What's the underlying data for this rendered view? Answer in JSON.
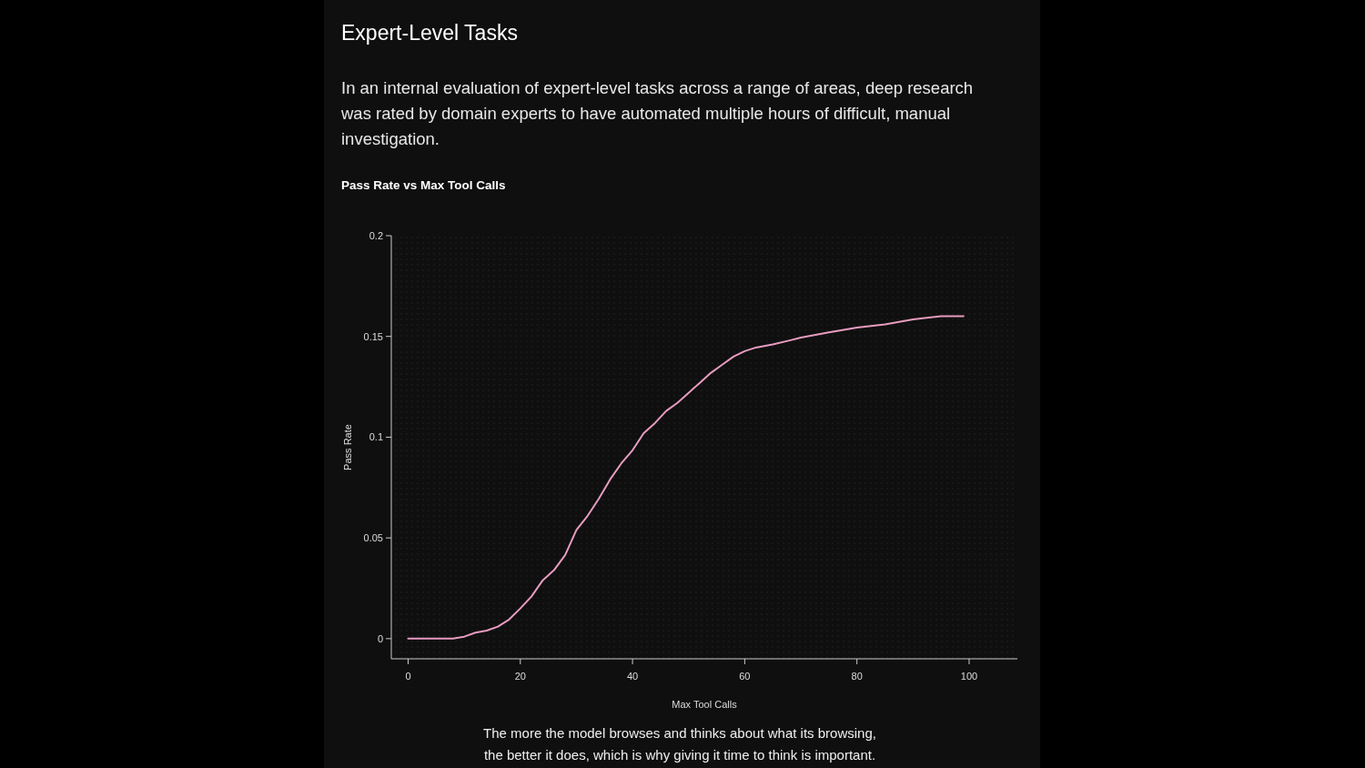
{
  "chart_data": {
    "type": "line",
    "title": "Expert-Level Tasks",
    "subtitle": "In an internal evaluation of expert-level tasks across a range of areas, deep research was rated by domain experts to have automated multiple hours of difficult, manual investigation.",
    "annotations": [
      "Pass Rate vs Max Tool Calls",
      "The more the model browses and thinks about what its browsing, the better it does, which is why giving it time to think is important."
    ],
    "xlabel": "Max Tool Calls",
    "ylabel": "Pass Rate",
    "xlim": [
      -3,
      108.6
    ],
    "ylim": [
      -0.01,
      0.2
    ],
    "xticks": [
      0,
      20,
      40,
      60,
      80,
      100
    ],
    "yticks": [
      0,
      0.05,
      0.1,
      0.15,
      0.2
    ],
    "grid": false,
    "line_style": "solid",
    "marker": "none",
    "series": [
      {
        "color": "#e89cc0",
        "x": [
          0,
          5,
          8,
          10,
          12,
          14,
          16,
          18,
          20,
          22,
          24,
          26,
          28,
          30,
          32,
          34,
          36,
          38,
          40,
          42,
          44,
          46,
          48,
          50,
          52,
          54,
          56,
          58,
          60,
          62,
          65,
          68,
          70,
          75,
          80,
          85,
          90,
          95,
          99
        ],
        "values": [
          0,
          0,
          0,
          0.001,
          0.003,
          0.004,
          0.006,
          0.0095,
          0.015,
          0.021,
          0.029,
          0.034,
          0.0415,
          0.054,
          0.061,
          0.0695,
          0.079,
          0.087,
          0.0935,
          0.102,
          0.107,
          0.113,
          0.117,
          0.122,
          0.127,
          0.132,
          0.136,
          0.14,
          0.1427,
          0.1445,
          0.146,
          0.148,
          0.1494,
          0.152,
          0.1544,
          0.156,
          0.1585,
          0.16,
          0.16
        ]
      }
    ]
  }
}
